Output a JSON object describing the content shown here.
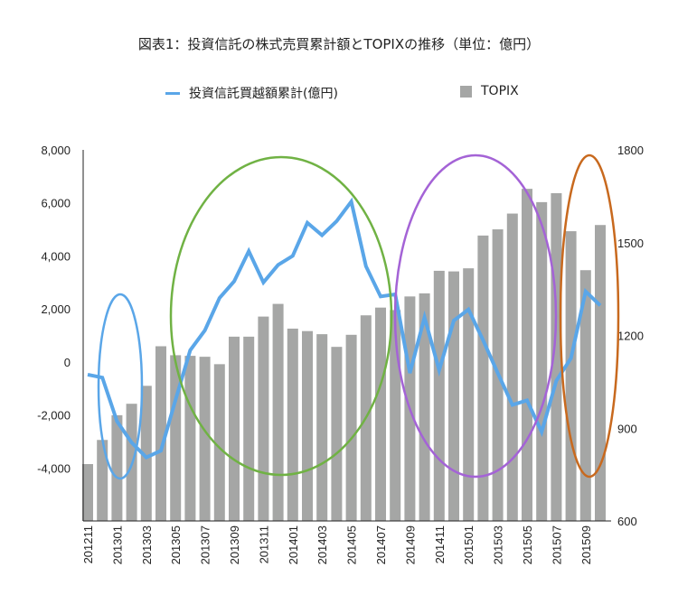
{
  "chart_data": {
    "type": "bar+line",
    "title": "図表1：投資信託の株式売買累計額とTOPIXの推移（単位：億円）",
    "legend_position": "top",
    "grid": false,
    "categories": [
      "201211",
      "201212",
      "201301",
      "201302",
      "201303",
      "201304",
      "201305",
      "201306",
      "201307",
      "201308",
      "201309",
      "201310",
      "201311",
      "201312",
      "201401",
      "201402",
      "201403",
      "201404",
      "201405",
      "201406",
      "201407",
      "201408",
      "201409",
      "201410",
      "201411",
      "201412",
      "201501",
      "201502",
      "201503",
      "201504",
      "201505",
      "201506",
      "201507",
      "201508",
      "201509",
      "201510"
    ],
    "x_tick_labels": [
      "201211",
      "201301",
      "201303",
      "201305",
      "201307",
      "201309",
      "201311",
      "201401",
      "201403",
      "201405",
      "201407",
      "201409",
      "201411",
      "201501",
      "201503",
      "201505",
      "201507",
      "201509"
    ],
    "left_axis": {
      "range": [
        -6000,
        8000
      ],
      "ticks": [
        "8,000",
        "6,000",
        "4,000",
        "2,000",
        "0",
        "-2,000",
        "-4,000"
      ],
      "tick_values": [
        8000,
        6000,
        4000,
        2000,
        0,
        -2000,
        -4000
      ]
    },
    "right_axis": {
      "range": [
        600,
        1800
      ],
      "ticks": [
        "1800",
        "1500",
        "1200",
        "900",
        "600"
      ],
      "tick_values": [
        1800,
        1500,
        1200,
        900,
        600
      ]
    },
    "series": [
      {
        "name": "投資信託買越額累計(億円)",
        "type": "line",
        "axis": "left",
        "color": "#5aa6e8",
        "values": [
          -480,
          -590,
          -2240,
          -3040,
          -3600,
          -3350,
          -1430,
          440,
          1190,
          2410,
          3040,
          4180,
          3000,
          3660,
          4000,
          5250,
          4780,
          5310,
          6050,
          3610,
          2470,
          2550,
          -420,
          1680,
          -310,
          1560,
          1980,
          820,
          -420,
          -1620,
          -1450,
          -2640,
          -710,
          140,
          2660,
          2130
        ]
      },
      {
        "name": "TOPIX",
        "type": "bar",
        "axis": "right",
        "color": "#a5a6a5",
        "values": [
          784,
          862,
          942,
          979,
          1037,
          1165,
          1136,
          1134,
          1131,
          1107,
          1196,
          1196,
          1261,
          1302,
          1222,
          1214,
          1204,
          1163,
          1202,
          1265,
          1290,
          1282,
          1326,
          1336,
          1409,
          1407,
          1417,
          1523,
          1543,
          1594,
          1674,
          1631,
          1660,
          1537,
          1411,
          1557
        ]
      }
    ],
    "annotations": [
      {
        "shape": "ellipse",
        "color": "#5aa6e8",
        "span": [
          "201212",
          "201304"
        ]
      },
      {
        "shape": "ellipse",
        "color": "#70b244",
        "span": [
          "201305",
          "201407"
        ]
      },
      {
        "shape": "ellipse",
        "color": "#a463d6",
        "span": [
          "201408",
          "201506"
        ]
      },
      {
        "shape": "ellipse",
        "color": "#c8691e",
        "span": [
          "201508",
          "201510"
        ]
      }
    ]
  }
}
